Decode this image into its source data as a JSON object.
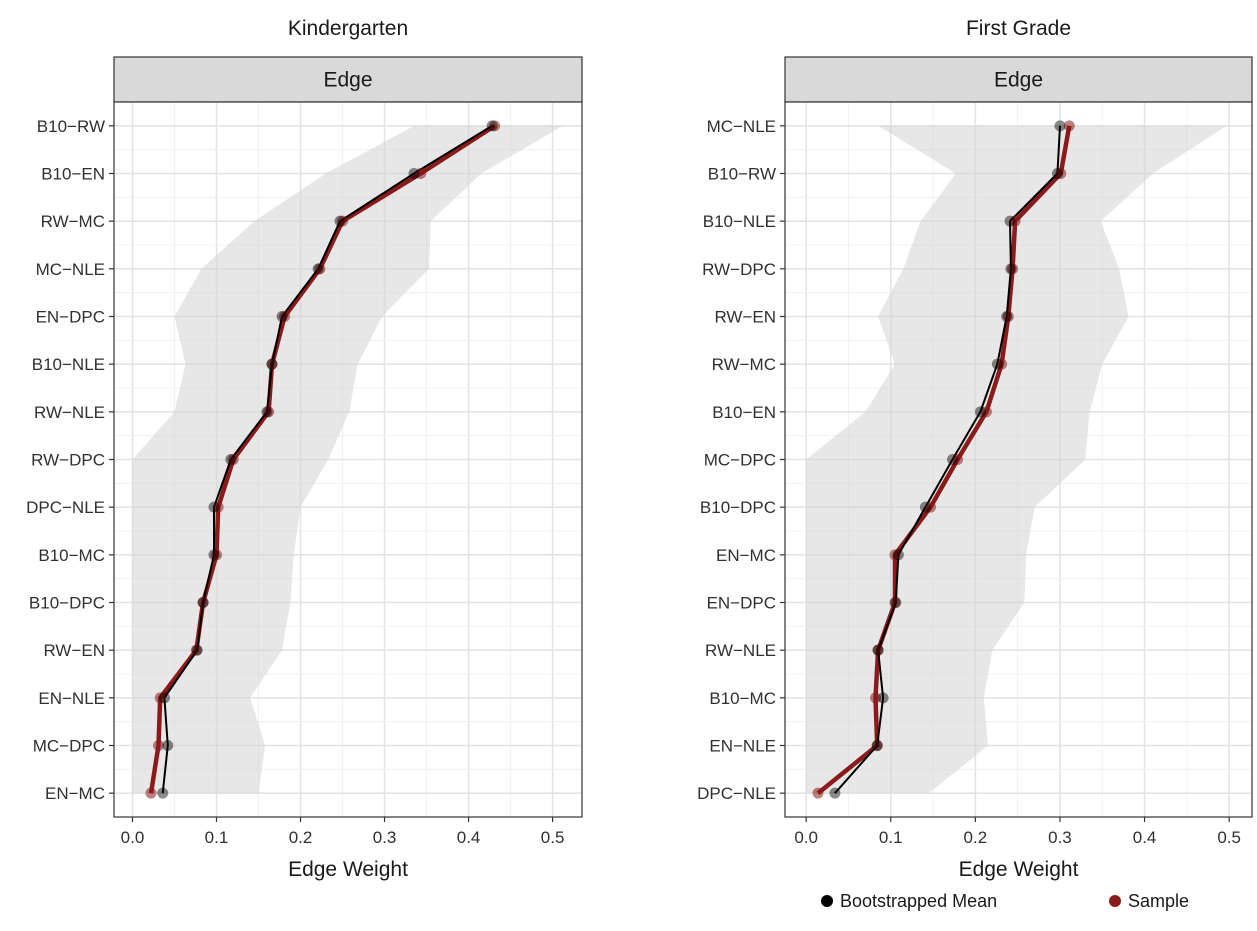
{
  "legend": {
    "items": [
      {
        "label": "Bootstrapped Mean",
        "color": "#000000"
      },
      {
        "label": "Sample",
        "color": "#8b1a1a"
      }
    ]
  },
  "chart_data": [
    {
      "type": "line",
      "title": "Kindergarten",
      "strip_label": "Edge",
      "xlabel": "Edge Weight",
      "ylabel": "",
      "xlim": [
        -0.022,
        0.535
      ],
      "xticks": [
        0.0,
        0.1,
        0.2,
        0.3,
        0.4,
        0.5
      ],
      "xtick_labels": [
        "0.0",
        "0.1",
        "0.2",
        "0.3",
        "0.4",
        "0.5"
      ],
      "grid": true,
      "categories": [
        "B10−RW",
        "B10−EN",
        "RW−MC",
        "MC−NLE",
        "EN−DPC",
        "B10−NLE",
        "RW−NLE",
        "RW−DPC",
        "DPC−NLE",
        "B10−MC",
        "B10−DPC",
        "RW−EN",
        "EN−NLE",
        "MC−DPC",
        "EN−MC"
      ],
      "series": [
        {
          "name": "Bootstrapped Mean",
          "values": [
            0.428,
            0.335,
            0.247,
            0.221,
            0.178,
            0.166,
            0.16,
            0.117,
            0.097,
            0.097,
            0.084,
            0.077,
            0.038,
            0.042,
            0.036
          ]
        },
        {
          "name": "Sample",
          "values": [
            0.431,
            0.343,
            0.25,
            0.223,
            0.181,
            0.166,
            0.162,
            0.12,
            0.102,
            0.1,
            0.084,
            0.076,
            0.033,
            0.031,
            0.022
          ]
        }
      ],
      "ci": {
        "lower": [
          0.335,
          0.23,
          0.145,
          0.082,
          0.05,
          0.063,
          0.05,
          0.0,
          0.0,
          0.0,
          0.0,
          0.0,
          0.0,
          0.0,
          0.0
        ],
        "upper": [
          0.512,
          0.415,
          0.355,
          0.353,
          0.297,
          0.268,
          0.258,
          0.233,
          0.2,
          0.192,
          0.188,
          0.178,
          0.14,
          0.158,
          0.15
        ]
      }
    },
    {
      "type": "line",
      "title": "First Grade",
      "strip_label": "Edge",
      "xlabel": "Edge Weight",
      "ylabel": "",
      "xlim": [
        -0.025,
        0.527
      ],
      "xticks": [
        0.0,
        0.1,
        0.2,
        0.3,
        0.4,
        0.5
      ],
      "xtick_labels": [
        "0.0",
        "0.1",
        "0.2",
        "0.3",
        "0.4",
        "0.5"
      ],
      "grid": true,
      "categories": [
        "MC−NLE",
        "B10−RW",
        "B10−NLE",
        "RW−DPC",
        "RW−EN",
        "RW−MC",
        "B10−EN",
        "MC−DPC",
        "B10−DPC",
        "EN−MC",
        "EN−DPC",
        "RW−NLE",
        "B10−MC",
        "EN−NLE",
        "DPC−NLE"
      ],
      "series": [
        {
          "name": "Bootstrapped Mean",
          "values": [
            0.3,
            0.297,
            0.241,
            0.242,
            0.237,
            0.226,
            0.206,
            0.173,
            0.141,
            0.109,
            0.106,
            0.085,
            0.091,
            0.084,
            0.034
          ]
        },
        {
          "name": "Sample",
          "values": [
            0.311,
            0.301,
            0.247,
            0.244,
            0.239,
            0.231,
            0.213,
            0.179,
            0.147,
            0.105,
            0.105,
            0.085,
            0.082,
            0.084,
            0.014
          ]
        }
      ],
      "ci": {
        "lower": [
          0.085,
          0.177,
          0.135,
          0.115,
          0.085,
          0.105,
          0.07,
          0.0,
          0.0,
          0.0,
          0.0,
          0.0,
          0.0,
          0.0,
          0.0
        ],
        "upper": [
          0.497,
          0.41,
          0.348,
          0.37,
          0.381,
          0.35,
          0.335,
          0.33,
          0.27,
          0.26,
          0.258,
          0.22,
          0.21,
          0.215,
          0.145
        ]
      }
    }
  ]
}
